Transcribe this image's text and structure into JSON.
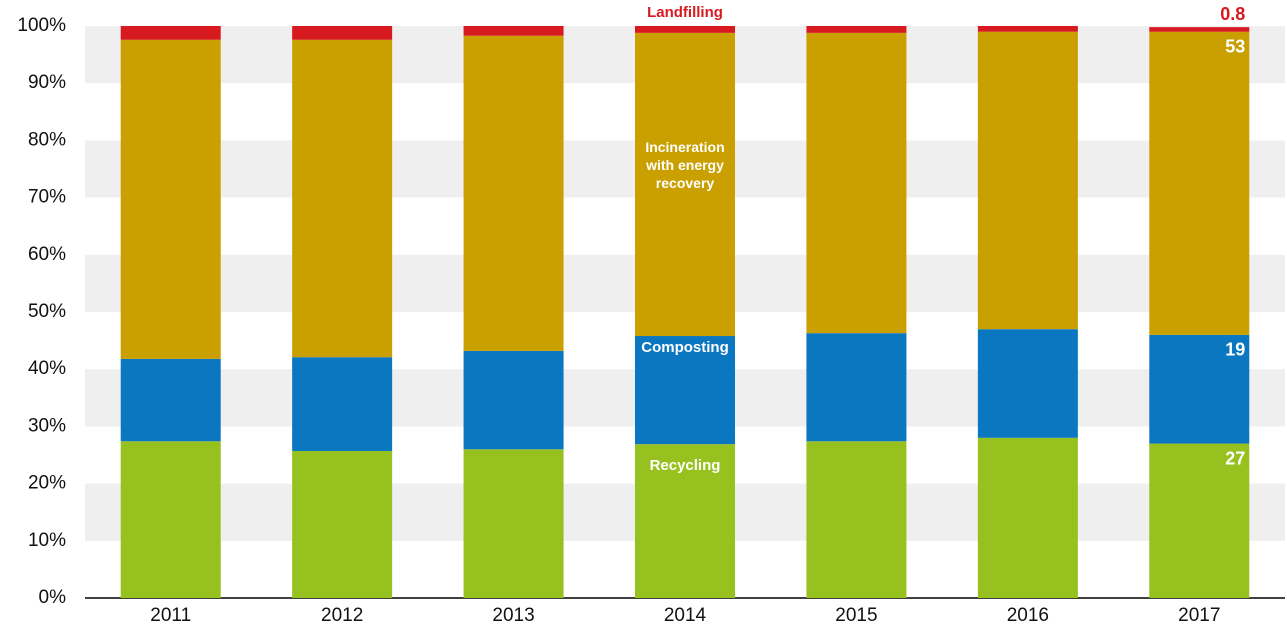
{
  "chart_data": {
    "type": "stacked_bar",
    "categories": [
      "2011",
      "2012",
      "2013",
      "2014",
      "2015",
      "2016",
      "2017"
    ],
    "series": [
      {
        "name": "Recycling",
        "color": "#97c11f",
        "values": [
          27.4,
          25.7,
          26.0,
          26.9,
          27.4,
          28.0,
          27
        ]
      },
      {
        "name": "Composting",
        "color": "#0b77c0",
        "values": [
          14.4,
          16.4,
          17.2,
          18.9,
          18.9,
          19.0,
          19
        ]
      },
      {
        "name": "Incineration with energy recovery",
        "color": "#c9a000",
        "values": [
          55.8,
          55.5,
          55.1,
          53.0,
          52.5,
          52.0,
          53
        ]
      },
      {
        "name": "Landfilling",
        "color": "#d71920",
        "values": [
          2.4,
          2.4,
          1.7,
          1.2,
          1.2,
          1.0,
          0.8
        ]
      }
    ],
    "ylim": [
      0,
      100
    ],
    "yticks": [
      {
        "value": 0,
        "label": "0%"
      },
      {
        "value": 10,
        "label": "10%"
      },
      {
        "value": 20,
        "label": "20%"
      },
      {
        "value": 30,
        "label": "30%"
      },
      {
        "value": 40,
        "label": "40%"
      },
      {
        "value": 50,
        "label": "50%"
      },
      {
        "value": 60,
        "label": "60%"
      },
      {
        "value": 70,
        "label": "70%"
      },
      {
        "value": 80,
        "label": "80%"
      },
      {
        "value": 90,
        "label": "90%"
      },
      {
        "value": 100,
        "label": "100%"
      }
    ],
    "grid": true
  }
}
